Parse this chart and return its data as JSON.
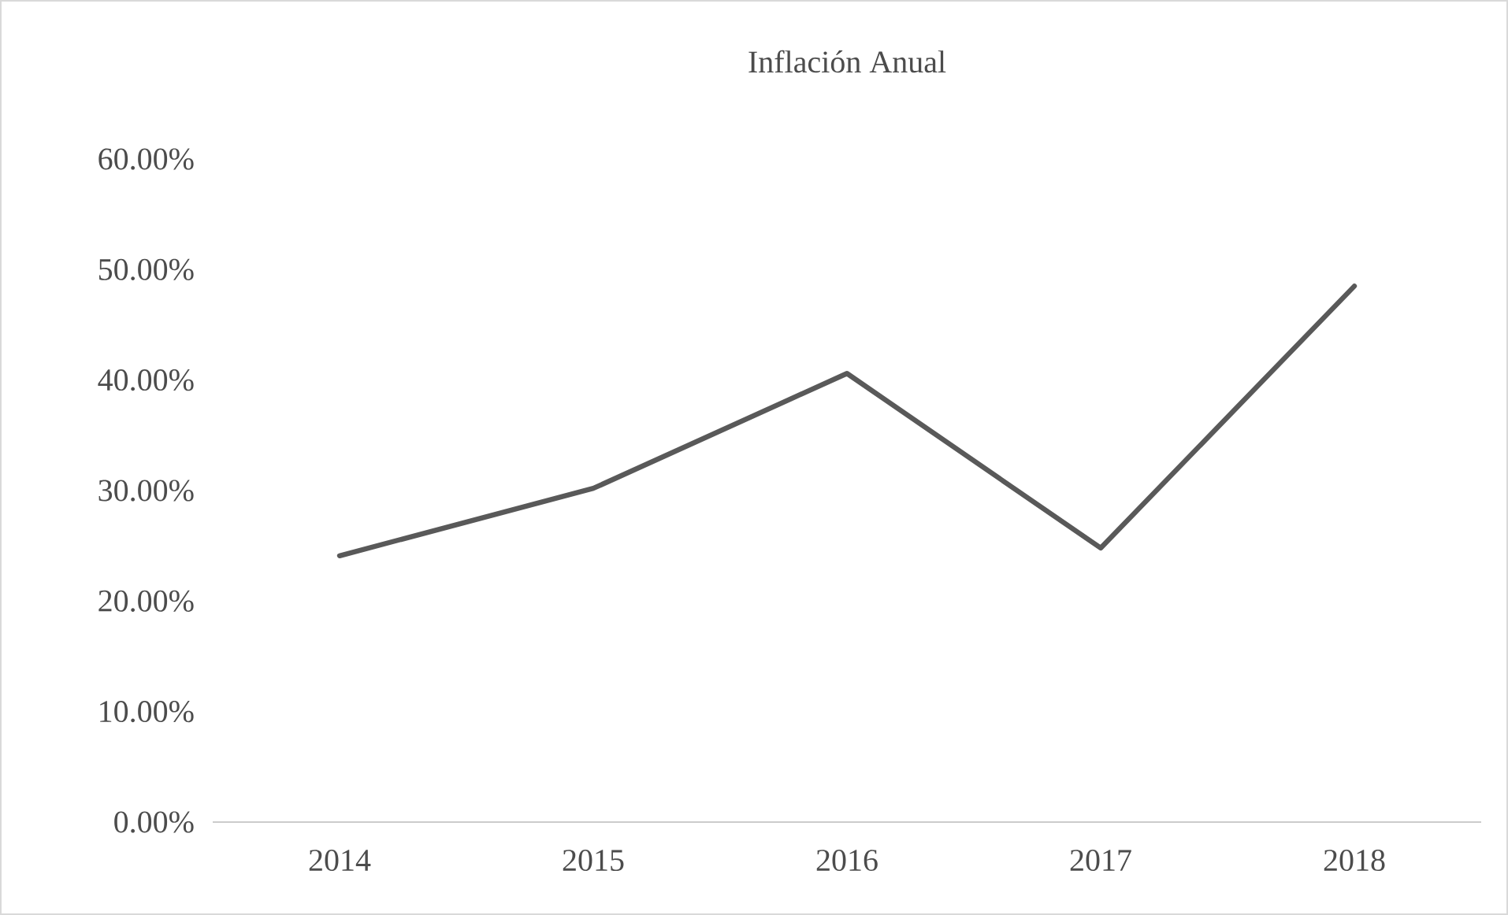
{
  "chart_data": {
    "type": "line",
    "title": "Inflación Anual",
    "categories": [
      "2014",
      "2015",
      "2016",
      "2017",
      "2018"
    ],
    "series": [
      {
        "color": "#595959",
        "values": [
          24.1,
          30.2,
          40.6,
          24.8,
          48.5
        ]
      }
    ],
    "ylim": [
      0,
      60
    ],
    "yticks": [
      {
        "value": 0,
        "label": "0.00%"
      },
      {
        "value": 10,
        "label": "10.00%"
      },
      {
        "value": 20,
        "label": "20.00%"
      },
      {
        "value": 30,
        "label": "30.00%"
      },
      {
        "value": 40,
        "label": "40.00%"
      },
      {
        "value": 50,
        "label": "50.00%"
      },
      {
        "value": 60,
        "label": "60.00%"
      }
    ]
  }
}
